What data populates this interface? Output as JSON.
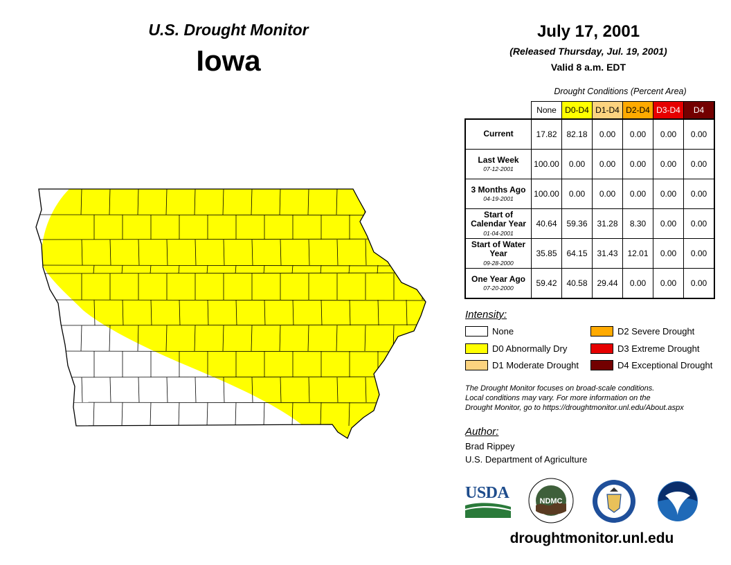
{
  "header": {
    "product": "U.S. Drought Monitor",
    "state": "Iowa"
  },
  "date": {
    "title": "July 17, 2001",
    "released": "(Released Thursday, Jul. 19, 2001)",
    "valid": "Valid 8 a.m. EDT"
  },
  "conditions": {
    "caption": "Drought Conditions (Percent Area)",
    "columns": [
      {
        "label": "None",
        "color": "#ffffff",
        "text_color": "#000000"
      },
      {
        "label": "D0-D4",
        "color": "#ffff00",
        "text_color": "#000000"
      },
      {
        "label": "D1-D4",
        "color": "#fcd37f",
        "text_color": "#000000"
      },
      {
        "label": "D2-D4",
        "color": "#ffaa00",
        "text_color": "#000000"
      },
      {
        "label": "D3-D4",
        "color": "#e60000",
        "text_color": "#ffffff"
      },
      {
        "label": "D4",
        "color": "#730000",
        "text_color": "#ffffff"
      }
    ],
    "rows": [
      {
        "label": "Current",
        "date": "",
        "values": [
          "17.82",
          "82.18",
          "0.00",
          "0.00",
          "0.00",
          "0.00"
        ]
      },
      {
        "label": "Last Week",
        "date": "07-12-2001",
        "values": [
          "100.00",
          "0.00",
          "0.00",
          "0.00",
          "0.00",
          "0.00"
        ]
      },
      {
        "label": "3 Months Ago",
        "date": "04-19-2001",
        "values": [
          "100.00",
          "0.00",
          "0.00",
          "0.00",
          "0.00",
          "0.00"
        ]
      },
      {
        "label": "Start of Calendar Year",
        "date": "01-04-2001",
        "values": [
          "40.64",
          "59.36",
          "31.28",
          "8.30",
          "0.00",
          "0.00"
        ]
      },
      {
        "label": "Start of Water Year",
        "date": "09-28-2000",
        "values": [
          "35.85",
          "64.15",
          "31.43",
          "12.01",
          "0.00",
          "0.00"
        ]
      },
      {
        "label": "One Year Ago",
        "date": "07-20-2000",
        "values": [
          "59.42",
          "40.58",
          "29.44",
          "0.00",
          "0.00",
          "0.00"
        ]
      }
    ]
  },
  "legend": {
    "title": "Intensity:",
    "items": [
      {
        "label": "None",
        "color": "#ffffff"
      },
      {
        "label": "D0 Abnormally Dry",
        "color": "#ffff00"
      },
      {
        "label": "D1 Moderate Drought",
        "color": "#fcd37f"
      },
      {
        "label": "D2 Severe Drought",
        "color": "#ffaa00"
      },
      {
        "label": "D3 Extreme Drought",
        "color": "#e60000"
      },
      {
        "label": "D4 Exceptional Drought",
        "color": "#730000"
      }
    ]
  },
  "disclaimer": {
    "line1": "The Drought Monitor focuses on broad-scale conditions.",
    "line2": "Local conditions may vary. For more information on the",
    "line3": "Drought Monitor, go to https://droughtmonitor.unl.edu/About.aspx"
  },
  "author": {
    "title": "Author:",
    "name": "Brad Rippey",
    "org": "U.S. Department of Agriculture"
  },
  "logos": {
    "usda": "USDA",
    "ndmc": "NDMC",
    "noaa": "NOAA"
  },
  "website": "droughtmonitor.unl.edu",
  "map_colors": {
    "d0": "#ffff00",
    "none": "#ffffff",
    "border": "#000000"
  }
}
